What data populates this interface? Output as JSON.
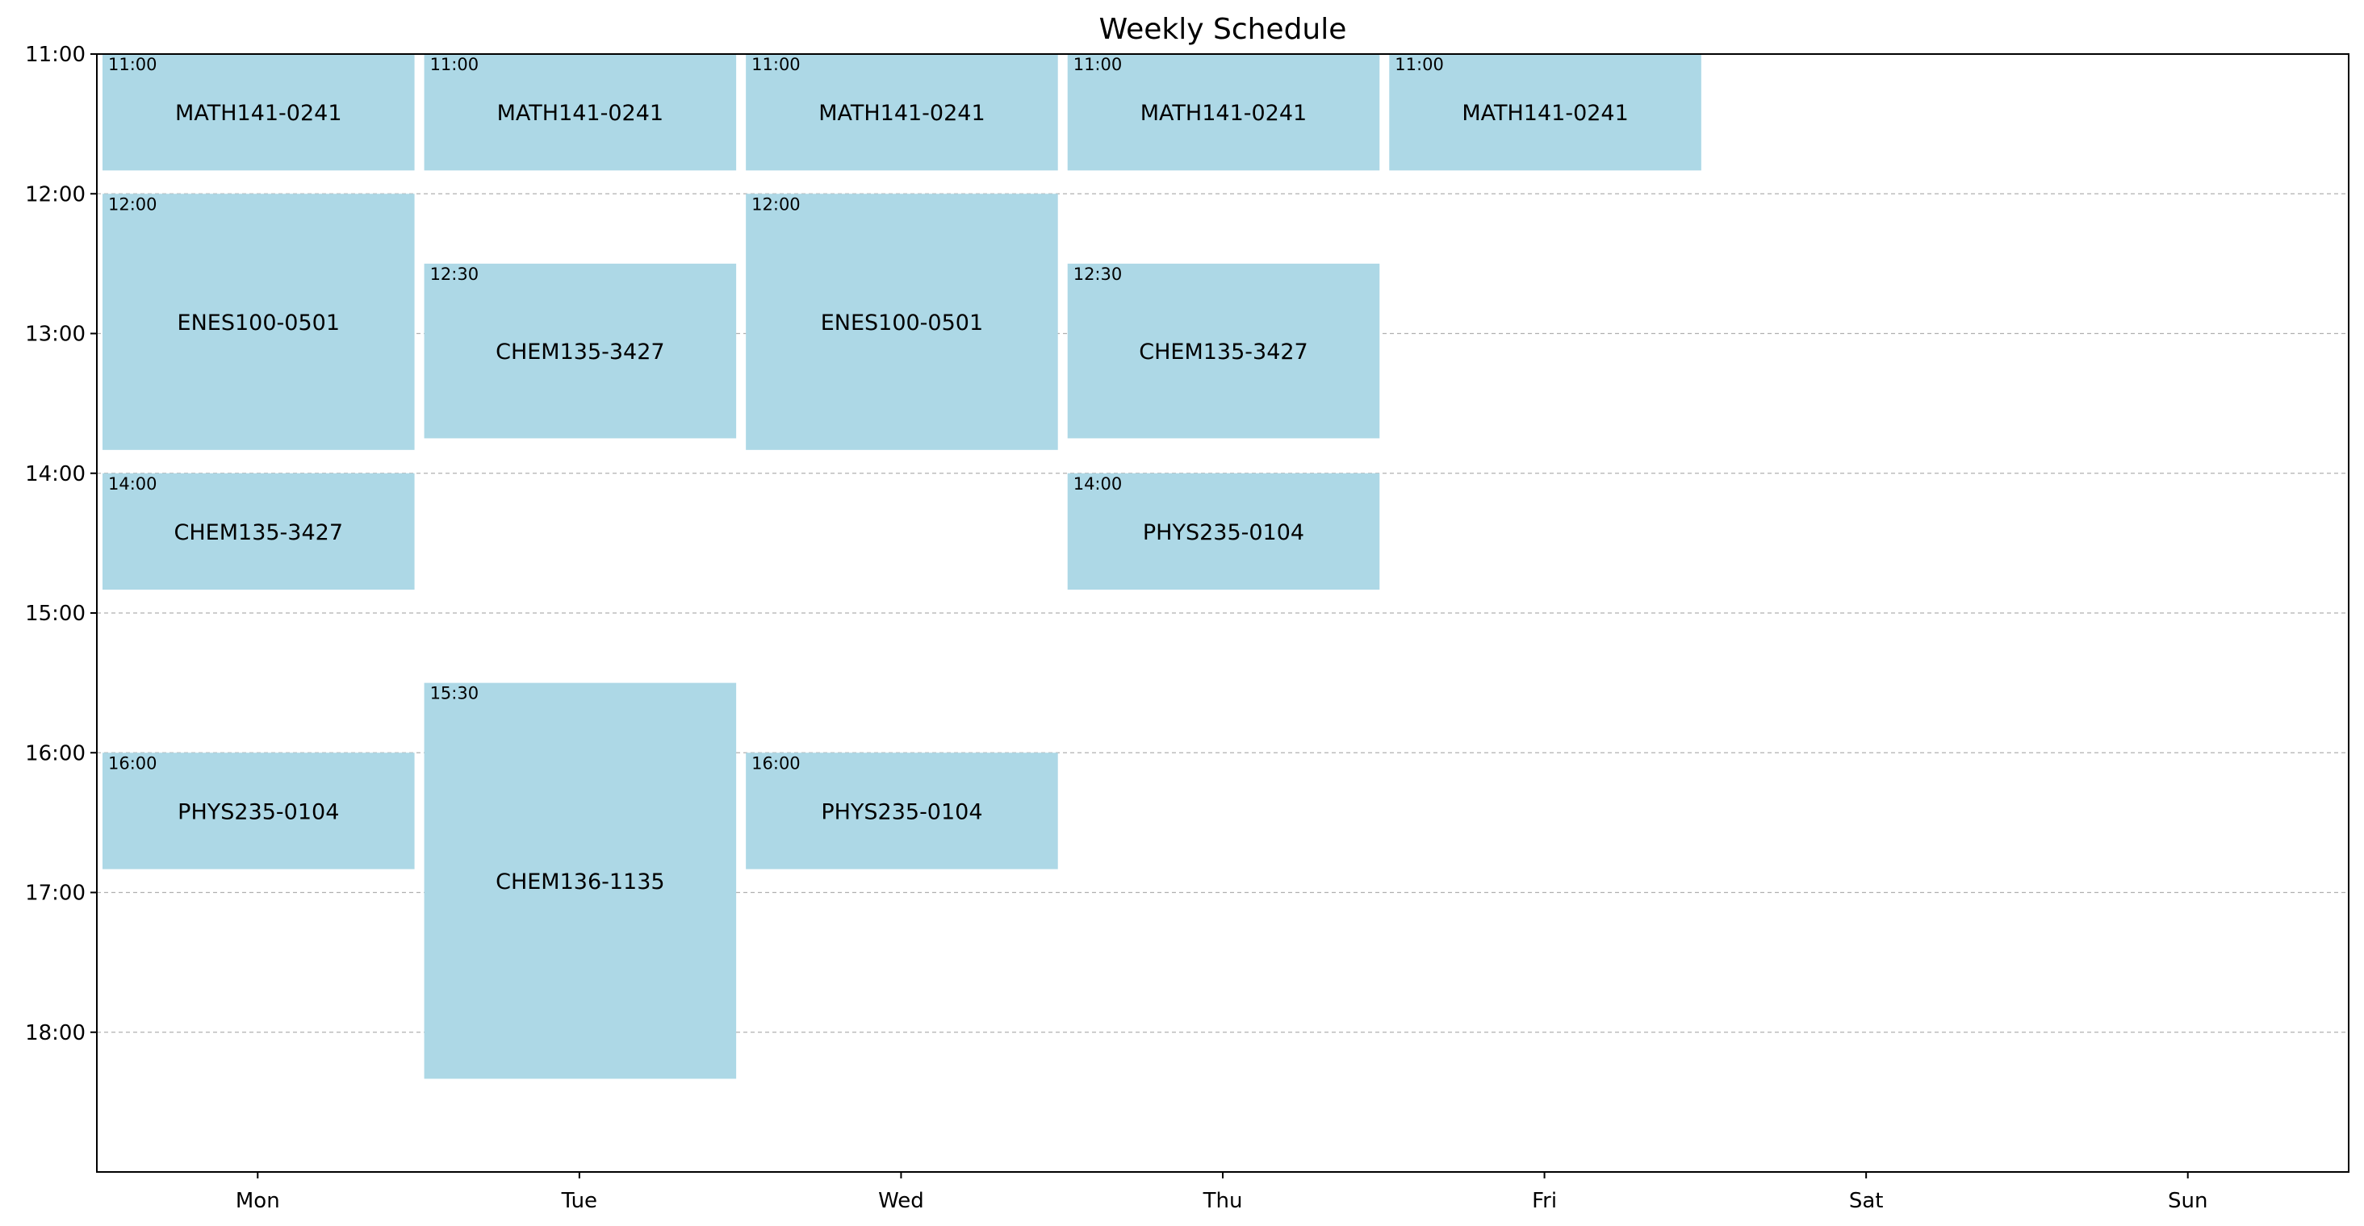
{
  "chart_data": {
    "type": "schedule",
    "title": "Weekly Schedule",
    "days": [
      "Mon",
      "Tue",
      "Wed",
      "Thu",
      "Fri",
      "Sat",
      "Sun"
    ],
    "y_ticks": [
      "11:00",
      "12:00",
      "13:00",
      "14:00",
      "15:00",
      "16:00",
      "17:00",
      "18:00"
    ],
    "y_range": [
      11,
      19
    ],
    "grid": "horizontal dashed",
    "colors": {
      "event_fill": "#add8e6",
      "grid": "#b0b0b0",
      "axis": "#000000"
    },
    "events": [
      {
        "day": 0,
        "course": "MATH141-0241",
        "start_label": "11:00",
        "start": 11.0,
        "end": 11.833
      },
      {
        "day": 0,
        "course": "ENES100-0501",
        "start_label": "12:00",
        "start": 12.0,
        "end": 13.833
      },
      {
        "day": 0,
        "course": "CHEM135-3427",
        "start_label": "14:00",
        "start": 14.0,
        "end": 14.833
      },
      {
        "day": 0,
        "course": "PHYS235-0104",
        "start_label": "16:00",
        "start": 16.0,
        "end": 16.833
      },
      {
        "day": 1,
        "course": "MATH141-0241",
        "start_label": "11:00",
        "start": 11.0,
        "end": 11.833
      },
      {
        "day": 1,
        "course": "CHEM135-3427",
        "start_label": "12:30",
        "start": 12.5,
        "end": 13.75
      },
      {
        "day": 1,
        "course": "CHEM136-1135",
        "start_label": "15:30",
        "start": 15.5,
        "end": 18.333
      },
      {
        "day": 2,
        "course": "MATH141-0241",
        "start_label": "11:00",
        "start": 11.0,
        "end": 11.833
      },
      {
        "day": 2,
        "course": "ENES100-0501",
        "start_label": "12:00",
        "start": 12.0,
        "end": 13.833
      },
      {
        "day": 2,
        "course": "PHYS235-0104",
        "start_label": "16:00",
        "start": 16.0,
        "end": 16.833
      },
      {
        "day": 3,
        "course": "MATH141-0241",
        "start_label": "11:00",
        "start": 11.0,
        "end": 11.833
      },
      {
        "day": 3,
        "course": "CHEM135-3427",
        "start_label": "12:30",
        "start": 12.5,
        "end": 13.75
      },
      {
        "day": 3,
        "course": "PHYS235-0104",
        "start_label": "14:00",
        "start": 14.0,
        "end": 14.833
      },
      {
        "day": 4,
        "course": "MATH141-0241",
        "start_label": "11:00",
        "start": 11.0,
        "end": 11.833
      }
    ]
  }
}
